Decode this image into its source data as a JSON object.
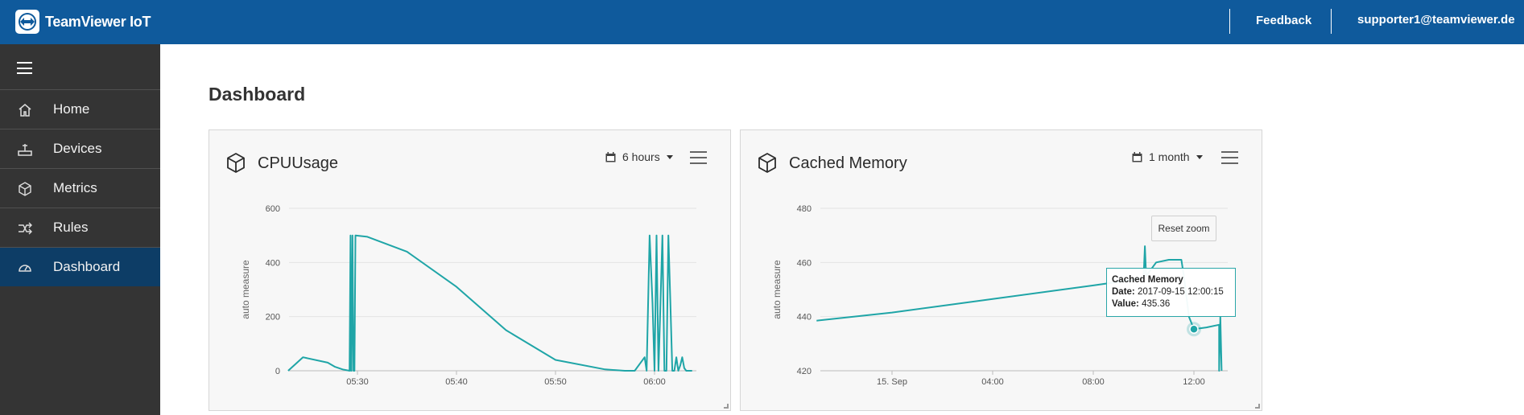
{
  "topbar": {
    "brand": "TeamViewer IoT",
    "feedback": "Feedback",
    "user": "supporter1@teamviewer.de"
  },
  "sidebar": {
    "items": [
      {
        "label": "Home",
        "icon": "home-icon"
      },
      {
        "label": "Devices",
        "icon": "device-icon"
      },
      {
        "label": "Metrics",
        "icon": "cube-icon"
      },
      {
        "label": "Rules",
        "icon": "rules-icon"
      },
      {
        "label": "Dashboard",
        "icon": "dashboard-icon",
        "active": true
      }
    ]
  },
  "page": {
    "title": "Dashboard"
  },
  "widgets": [
    {
      "title": "CPUUsage",
      "range": "6 hours"
    },
    {
      "title": "Cached Memory",
      "range": "1 month",
      "reset_zoom": "Reset zoom",
      "tooltip": {
        "series": "Cached Memory",
        "date_label": "Date:",
        "date": "2017-09-15 12:00:15",
        "value_label": "Value:",
        "value": "435.36"
      }
    }
  ],
  "colors": {
    "topbar": "#0f5a9c",
    "sidebar": "#343434",
    "active": "#0d3d66",
    "series": "#1fa5a7"
  },
  "chart_data": [
    {
      "type": "line",
      "title": "CPUUsage",
      "ylabel": "auto measure",
      "ylim": [
        0,
        600
      ],
      "yticks": [
        0,
        200,
        400,
        600
      ],
      "xticks": [
        "05:30",
        "05:40",
        "05:50",
        "06:00"
      ],
      "x_minutes_from_0530": [
        -7,
        -5.5,
        -3,
        -2.3,
        -1.5,
        -0.8,
        -0.7,
        -0.65,
        -0.6,
        -0.5,
        -0.4,
        -0.3,
        -0.2,
        1,
        5,
        10,
        15,
        20,
        25,
        27,
        28,
        29,
        29.2,
        29.5,
        29.8,
        30,
        30.2,
        30.4,
        30.6,
        30.8,
        31,
        31.2,
        31.4,
        31.6,
        31.8,
        32,
        32.2,
        32.4,
        32.6,
        32.8,
        33,
        33.2,
        33.4,
        33.6,
        33.8
      ],
      "values": [
        0,
        50,
        30,
        15,
        5,
        0,
        500,
        0,
        0,
        500,
        0,
        0,
        500,
        495,
        440,
        310,
        150,
        40,
        5,
        0,
        0,
        50,
        0,
        500,
        250,
        0,
        500,
        0,
        250,
        500,
        0,
        0,
        500,
        250,
        0,
        0,
        50,
        0,
        20,
        50,
        10,
        0,
        0,
        0,
        0
      ]
    },
    {
      "type": "line",
      "title": "Cached Memory",
      "ylabel": "auto measure",
      "ylim": [
        420,
        480
      ],
      "yticks": [
        420,
        440,
        460,
        480
      ],
      "xticks": [
        "15. Sep",
        "04:00",
        "08:00",
        "12:00"
      ],
      "x_hours_from_15sep": [
        -3,
        0,
        4,
        8,
        9.5,
        10,
        10.05,
        10.1,
        10.5,
        11,
        11.5,
        11.6,
        11.8,
        12,
        12.5,
        13,
        13,
        13.05,
        13.1
      ],
      "values": [
        438.5,
        441.5,
        446.5,
        451.5,
        453.5,
        454.5,
        466,
        455,
        460,
        461,
        461,
        455,
        440,
        435.36,
        436,
        437,
        420,
        440,
        420
      ]
    }
  ]
}
